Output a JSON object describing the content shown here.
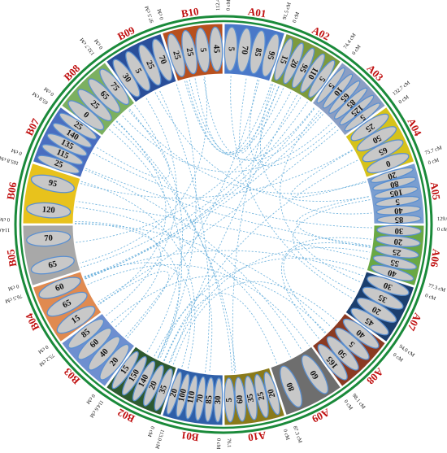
{
  "chart_data": {
    "type": "circos",
    "chromosomes": [
      {
        "name": "A01",
        "color": "#4a78c8",
        "end": "91.5 cM",
        "positions": [
          "5",
          "70",
          "85",
          "95"
        ]
      },
      {
        "name": "A02",
        "color": "#7d9a3c",
        "end": "74.4 cM",
        "positions": [
          "15",
          "20",
          "95",
          "110",
          "5"
        ]
      },
      {
        "name": "A03",
        "color": "#8a9ec4",
        "end": "132.7 cM",
        "positions": [
          "5",
          "10",
          "65",
          "85",
          "125",
          "5"
        ]
      },
      {
        "name": "A04",
        "color": "#d6c21a",
        "end": "75.7 cM",
        "positions": [
          "25",
          "50",
          "65",
          "0"
        ]
      },
      {
        "name": "A05",
        "color": "#7a9ed0",
        "end": "129.0 cM",
        "positions": [
          "20",
          "80",
          "105",
          "5",
          "40",
          "85"
        ]
      },
      {
        "name": "A06",
        "color": "#6aa844",
        "end": "77.3 cM",
        "positions": [
          "30",
          "20",
          "25",
          "55",
          "40"
        ]
      },
      {
        "name": "A07",
        "color": "#1c3f6e",
        "end": "94.0 cM",
        "positions": [
          "30",
          "35",
          "20",
          "45"
        ]
      },
      {
        "name": "A08",
        "color": "#8b3a22",
        "end": "98.1 cM",
        "positions": [
          "40",
          "5",
          "50",
          "165"
        ]
      },
      {
        "name": "A09",
        "color": "#6e6e6e",
        "end": "87.3 cM",
        "positions": [
          "60",
          "80"
        ]
      },
      {
        "name": "A10",
        "color": "#8a7a1a",
        "end": "76.1 cM",
        "positions": [
          "20",
          "25",
          "35",
          "60",
          "5"
        ]
      },
      {
        "name": "B01",
        "color": "#2f5fa8",
        "end": "113.0 cM",
        "positions": [
          "30",
          "85",
          "70",
          "110",
          "100",
          "20"
        ]
      },
      {
        "name": "B02",
        "color": "#2e5a30",
        "end": "114.6 cM",
        "positions": [
          "35",
          "20",
          "140",
          "150",
          "15"
        ]
      },
      {
        "name": "B03",
        "color": "#6e8fd0",
        "end": "75.2 cM",
        "positions": [
          "20",
          "40",
          "60",
          "85"
        ]
      },
      {
        "name": "B04",
        "color": "#e08a50",
        "end": "76.5 cM",
        "positions": [
          "15",
          "65",
          "60"
        ]
      },
      {
        "name": "B05",
        "color": "#a8a8a8",
        "end": "114.6 cM",
        "positions": [
          "65",
          "70"
        ]
      },
      {
        "name": "B06",
        "color": "#e8c21c",
        "end": "105.8 cM",
        "positions": [
          "120",
          "95"
        ]
      },
      {
        "name": "B07",
        "color": "#4a6ec0",
        "end": "65.8 cM",
        "positions": [
          "25",
          "115",
          "135",
          "140",
          "25"
        ]
      },
      {
        "name": "B08",
        "color": "#7cb060",
        "end": "132.7 cM",
        "positions": [
          "0",
          "25",
          "65",
          "75"
        ]
      },
      {
        "name": "B09",
        "color": "#2a4f9a",
        "end": "97.5 cM",
        "positions": [
          "30",
          "5",
          "25",
          "70"
        ]
      },
      {
        "name": "B10",
        "color": "#b8501e",
        "end": "112.4 cM",
        "positions": [
          "25",
          "25",
          "5",
          "45"
        ]
      }
    ],
    "start_label": "0 cM",
    "outer_ring_color": "#1a8a3a",
    "link_color": "#5aa8d8",
    "label_color": "#c01010",
    "marker_fill": "#c8c8c8",
    "marker_stroke": "#5a8fd0",
    "links_count": 60
  }
}
